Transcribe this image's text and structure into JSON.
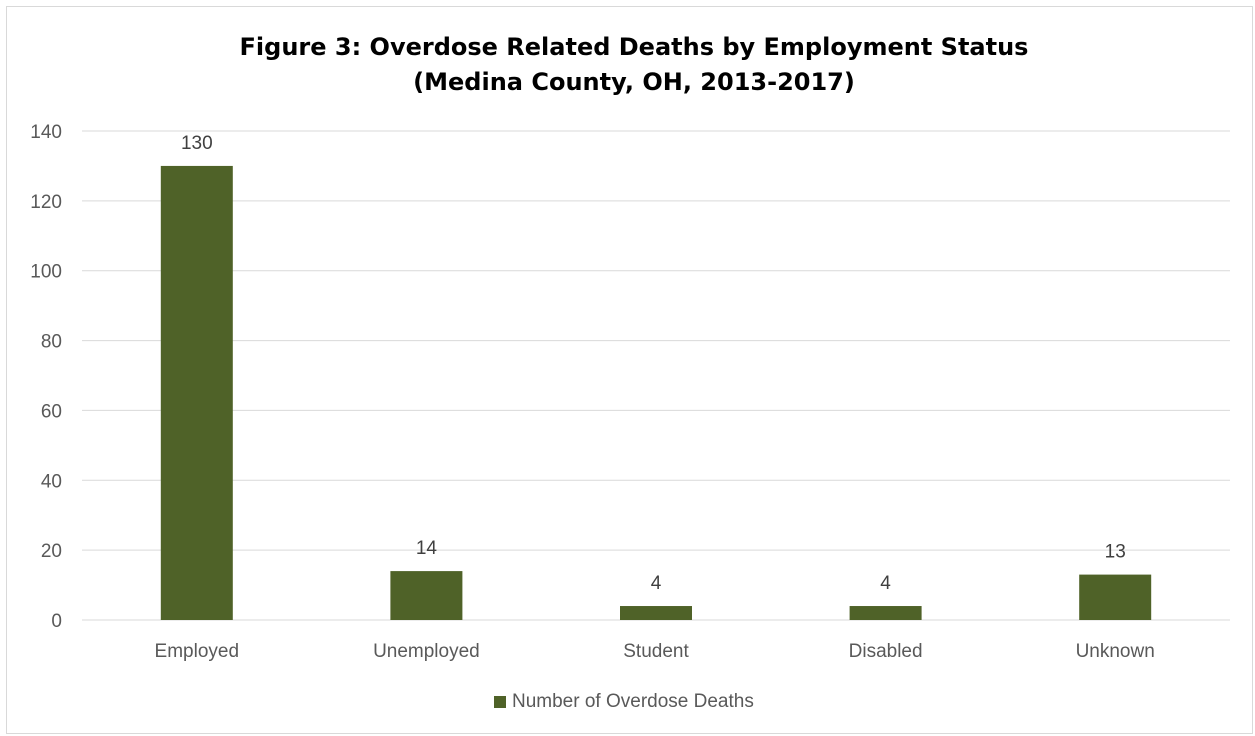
{
  "chart_data": {
    "type": "bar",
    "title": "Figure 3: Overdose Related Deaths by Employment Status",
    "subtitle": "(Medina County, OH, 2013-2017)",
    "categories": [
      "Employed",
      "Unemployed",
      "Student",
      "Disabled",
      "Unknown"
    ],
    "series": [
      {
        "name": "Number of Overdose Deaths",
        "values": [
          130,
          14,
          4,
          4,
          13
        ],
        "color": "#4f6228"
      }
    ],
    "data_labels": [
      "130",
      "14",
      "4",
      "4",
      "13"
    ],
    "y_ticks": [
      "0",
      "20",
      "40",
      "60",
      "80",
      "100",
      "120",
      "140"
    ],
    "ylim": [
      0,
      140
    ],
    "xlabel": "",
    "ylabel": "",
    "grid": true,
    "legend_position": "bottom"
  },
  "colors": {
    "bar": "#4f6228",
    "gridline": "#d9d9d9",
    "tick_text": "#595959",
    "label_text": "#404040"
  }
}
